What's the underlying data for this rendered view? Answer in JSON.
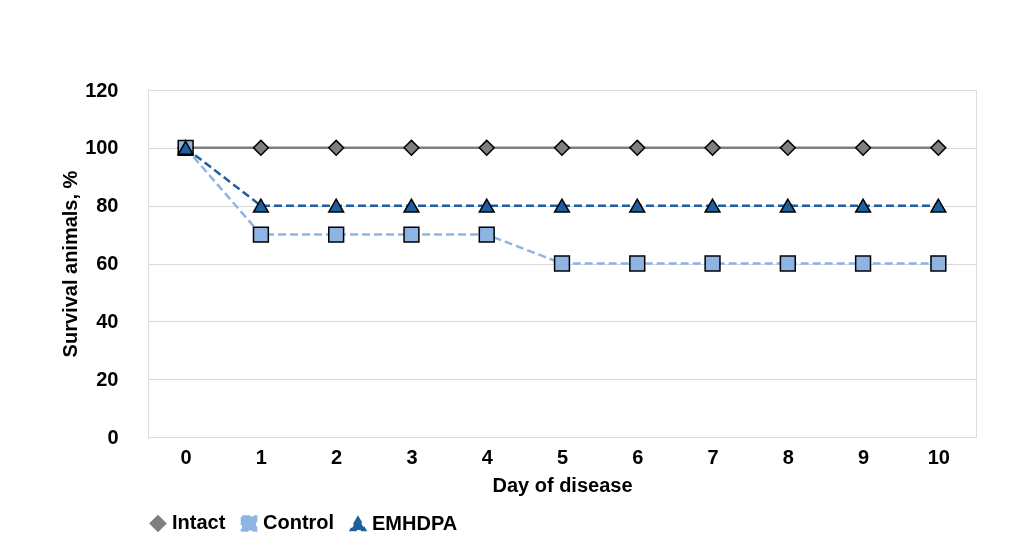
{
  "chart_data": {
    "type": "line",
    "xlabel": "Day of disease",
    "ylabel": "Survival animals, %",
    "categories": [
      "0",
      "1",
      "2",
      "3",
      "4",
      "5",
      "6",
      "7",
      "8",
      "9",
      "10"
    ],
    "series": [
      {
        "name": "Intact",
        "color": "#7f7f7f",
        "marker": "diamond",
        "line_style": "solid",
        "values": [
          100,
          100,
          100,
          100,
          100,
          100,
          100,
          100,
          100,
          100,
          100
        ]
      },
      {
        "name": "Control",
        "color": "#8eb4e3",
        "marker": "square",
        "line_style": "dashed",
        "values": [
          100,
          70,
          70,
          70,
          70,
          60,
          60,
          60,
          60,
          60,
          60
        ]
      },
      {
        "name": "EMHDPA",
        "color": "#1f5f9f",
        "marker": "triangle",
        "line_style": "dashed",
        "values": [
          100,
          80,
          80,
          80,
          80,
          80,
          80,
          80,
          80,
          80,
          80
        ]
      }
    ],
    "ylim": [
      0,
      120
    ],
    "yticks": [
      0,
      20,
      40,
      60,
      80,
      100,
      120
    ],
    "grid": "y",
    "legend": "bottom"
  }
}
